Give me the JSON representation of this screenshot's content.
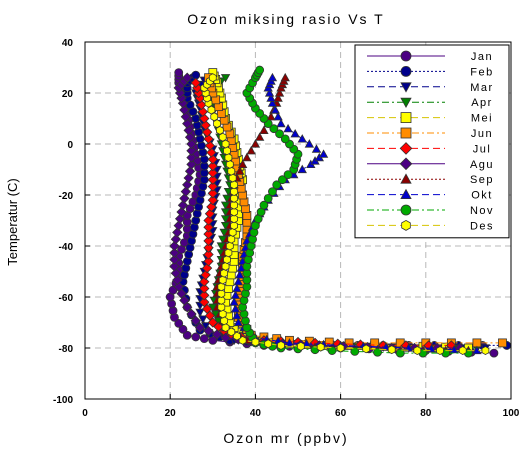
{
  "chart_data": {
    "type": "line",
    "title": "Ozon miksing rasio Vs T",
    "xlabel": "Ozon mr (ppbv)",
    "ylabel": "Temperatur (C)",
    "xlim": [
      0,
      100
    ],
    "ylim": [
      -100,
      40
    ],
    "x_ticks": [
      "0",
      "20",
      "40",
      "60",
      "80",
      "100"
    ],
    "y_ticks": [
      "-100",
      "-80",
      "-60",
      "-40",
      "-20",
      "0",
      "20",
      "40"
    ],
    "grid": "dashed",
    "legend_position": "top-right",
    "series": [
      {
        "name": "Jan",
        "color": "#4b0082",
        "marker": "circle",
        "line": "solid",
        "points": [
          [
            96,
            -82
          ],
          [
            80,
            -81
          ],
          [
            60,
            -80
          ],
          [
            42,
            -79
          ],
          [
            30,
            -77
          ],
          [
            24,
            -75
          ],
          [
            21,
            -68
          ],
          [
            20,
            -60
          ],
          [
            22,
            -52
          ],
          [
            22,
            -44
          ],
          [
            24,
            -36
          ],
          [
            24,
            -28
          ],
          [
            26,
            -20
          ],
          [
            27,
            -12
          ],
          [
            26,
            -4
          ],
          [
            25,
            4
          ],
          [
            24,
            12
          ],
          [
            23,
            18
          ],
          [
            22,
            24
          ],
          [
            22,
            28
          ]
        ]
      },
      {
        "name": "Feb",
        "color": "#00008b",
        "marker": "circle",
        "line": "dotted",
        "points": [
          [
            99,
            -79
          ],
          [
            82,
            -79
          ],
          [
            64,
            -79
          ],
          [
            46,
            -78
          ],
          [
            34,
            -77
          ],
          [
            27,
            -73
          ],
          [
            24,
            -64
          ],
          [
            23,
            -54
          ],
          [
            24,
            -46
          ],
          [
            25,
            -38
          ],
          [
            26,
            -30
          ],
          [
            27,
            -22
          ],
          [
            28,
            -14
          ],
          [
            28,
            -6
          ],
          [
            27,
            2
          ],
          [
            26,
            10
          ],
          [
            24,
            18
          ],
          [
            24,
            24
          ],
          [
            26,
            27
          ]
        ]
      },
      {
        "name": "Mar",
        "color": "#00008b",
        "marker": "triangle-down",
        "line": "dashed",
        "points": [
          [
            94,
            -80
          ],
          [
            78,
            -80
          ],
          [
            60,
            -79
          ],
          [
            45,
            -78
          ],
          [
            35,
            -77
          ],
          [
            29,
            -74
          ],
          [
            27,
            -66
          ],
          [
            27,
            -58
          ],
          [
            28,
            -50
          ],
          [
            29,
            -42
          ],
          [
            30,
            -34
          ],
          [
            30,
            -26
          ],
          [
            31,
            -18
          ],
          [
            31,
            -10
          ],
          [
            30,
            -2
          ],
          [
            28,
            6
          ],
          [
            27,
            14
          ],
          [
            26,
            20
          ],
          [
            28,
            25
          ]
        ]
      },
      {
        "name": "Apr",
        "color": "#008000",
        "marker": "triangle-down",
        "line": "dashdot",
        "points": [
          [
            92,
            -80
          ],
          [
            76,
            -80
          ],
          [
            58,
            -79
          ],
          [
            44,
            -78
          ],
          [
            36,
            -76
          ],
          [
            32,
            -72
          ],
          [
            30,
            -64
          ],
          [
            31,
            -56
          ],
          [
            32,
            -48
          ],
          [
            32,
            -40
          ],
          [
            33,
            -32
          ],
          [
            33,
            -24
          ],
          [
            34,
            -16
          ],
          [
            33,
            -8
          ],
          [
            32,
            0
          ],
          [
            31,
            8
          ],
          [
            30,
            16
          ],
          [
            30,
            22
          ],
          [
            33,
            26
          ]
        ]
      },
      {
        "name": "Mei",
        "color": "#ffff00",
        "marker": "square",
        "line": "dashed",
        "points": [
          [
            90,
            -80
          ],
          [
            74,
            -79
          ],
          [
            56,
            -79
          ],
          [
            44,
            -78
          ],
          [
            37,
            -76
          ],
          [
            34,
            -70
          ],
          [
            33,
            -62
          ],
          [
            34,
            -54
          ],
          [
            35,
            -46
          ],
          [
            35,
            -38
          ],
          [
            36,
            -30
          ],
          [
            36,
            -22
          ],
          [
            37,
            -14
          ],
          [
            36,
            -6
          ],
          [
            35,
            2
          ],
          [
            33,
            10
          ],
          [
            32,
            18
          ],
          [
            31,
            24
          ],
          [
            30,
            28
          ]
        ]
      },
      {
        "name": "Jun",
        "color": "#ff8c00",
        "marker": "square",
        "line": "dashdot",
        "points": [
          [
            98,
            -78
          ],
          [
            80,
            -78
          ],
          [
            62,
            -78
          ],
          [
            48,
            -77
          ],
          [
            39,
            -75
          ],
          [
            36,
            -68
          ],
          [
            36,
            -60
          ],
          [
            37,
            -52
          ],
          [
            37,
            -44
          ],
          [
            38,
            -36
          ],
          [
            38,
            -28
          ],
          [
            37,
            -20
          ],
          [
            36,
            -12
          ],
          [
            35,
            -4
          ],
          [
            34,
            4
          ],
          [
            32,
            12
          ],
          [
            30,
            20
          ],
          [
            29,
            26
          ]
        ]
      },
      {
        "name": "Jul",
        "color": "#ff0000",
        "marker": "diamond",
        "line": "dashed",
        "points": [
          [
            86,
            -79
          ],
          [
            70,
            -79
          ],
          [
            54,
            -78
          ],
          [
            42,
            -77
          ],
          [
            34,
            -75
          ],
          [
            30,
            -70
          ],
          [
            28,
            -62
          ],
          [
            28,
            -54
          ],
          [
            29,
            -46
          ],
          [
            29,
            -38
          ],
          [
            29,
            -30
          ],
          [
            30,
            -22
          ],
          [
            30,
            -14
          ],
          [
            30,
            -6
          ],
          [
            29,
            2
          ],
          [
            28,
            10
          ],
          [
            27,
            18
          ],
          [
            26,
            24
          ]
        ]
      },
      {
        "name": "Agu",
        "color": "#4b0082",
        "marker": "diamond",
        "line": "solid",
        "points": [
          [
            88,
            -80
          ],
          [
            72,
            -80
          ],
          [
            55,
            -79
          ],
          [
            42,
            -78
          ],
          [
            33,
            -76
          ],
          [
            27,
            -72
          ],
          [
            24,
            -64
          ],
          [
            22,
            -56
          ],
          [
            21,
            -48
          ],
          [
            21,
            -40
          ],
          [
            22,
            -32
          ],
          [
            23,
            -24
          ],
          [
            24,
            -16
          ],
          [
            25,
            -8
          ],
          [
            25,
            0
          ],
          [
            24,
            8
          ],
          [
            23,
            16
          ],
          [
            22,
            22
          ],
          [
            24,
            26
          ]
        ]
      },
      {
        "name": "Sep",
        "color": "#8b0000",
        "marker": "triangle-up",
        "line": "dotted",
        "points": [
          [
            90,
            -81
          ],
          [
            74,
            -81
          ],
          [
            58,
            -80
          ],
          [
            46,
            -79
          ],
          [
            38,
            -77
          ],
          [
            33,
            -72
          ],
          [
            31,
            -64
          ],
          [
            31,
            -56
          ],
          [
            32,
            -48
          ],
          [
            33,
            -40
          ],
          [
            34,
            -32
          ],
          [
            34,
            -24
          ],
          [
            35,
            -16
          ],
          [
            37,
            -8
          ],
          [
            40,
            0
          ],
          [
            43,
            8
          ],
          [
            45,
            16
          ],
          [
            46,
            22
          ],
          [
            47,
            26
          ]
        ]
      },
      {
        "name": "Okt",
        "color": "#0000cd",
        "marker": "triangle-up",
        "line": "dashed",
        "points": [
          [
            92,
            -81
          ],
          [
            76,
            -80
          ],
          [
            60,
            -79
          ],
          [
            48,
            -78
          ],
          [
            40,
            -76
          ],
          [
            36,
            -70
          ],
          [
            35,
            -62
          ],
          [
            36,
            -54
          ],
          [
            37,
            -46
          ],
          [
            38,
            -38
          ],
          [
            40,
            -30
          ],
          [
            43,
            -22
          ],
          [
            47,
            -14
          ],
          [
            53,
            -8
          ],
          [
            56,
            -4
          ],
          [
            51,
            2
          ],
          [
            46,
            8
          ],
          [
            44,
            16
          ],
          [
            43,
            22
          ],
          [
            44,
            26
          ]
        ]
      },
      {
        "name": "Nov",
        "color": "#00aa00",
        "marker": "circle",
        "line": "dashdot",
        "points": [
          [
            90,
            -82
          ],
          [
            74,
            -82
          ],
          [
            58,
            -81
          ],
          [
            46,
            -80
          ],
          [
            40,
            -78
          ],
          [
            38,
            -72
          ],
          [
            37,
            -64
          ],
          [
            38,
            -56
          ],
          [
            38,
            -48
          ],
          [
            39,
            -40
          ],
          [
            40,
            -32
          ],
          [
            42,
            -24
          ],
          [
            45,
            -16
          ],
          [
            49,
            -10
          ],
          [
            50,
            -4
          ],
          [
            47,
            2
          ],
          [
            43,
            8
          ],
          [
            40,
            14
          ],
          [
            38,
            20
          ],
          [
            40,
            26
          ],
          [
            41,
            29
          ]
        ]
      },
      {
        "name": "Des",
        "color": "#ffff00",
        "marker": "hexagon",
        "line": "dashed",
        "points": [
          [
            94,
            -81
          ],
          [
            78,
            -81
          ],
          [
            60,
            -80
          ],
          [
            46,
            -79
          ],
          [
            37,
            -77
          ],
          [
            33,
            -72
          ],
          [
            32,
            -64
          ],
          [
            32,
            -56
          ],
          [
            33,
            -48
          ],
          [
            34,
            -40
          ],
          [
            35,
            -32
          ],
          [
            35,
            -24
          ],
          [
            35,
            -16
          ],
          [
            34,
            -8
          ],
          [
            33,
            0
          ],
          [
            31,
            8
          ],
          [
            29,
            16
          ],
          [
            28,
            22
          ],
          [
            30,
            26
          ]
        ]
      }
    ]
  }
}
